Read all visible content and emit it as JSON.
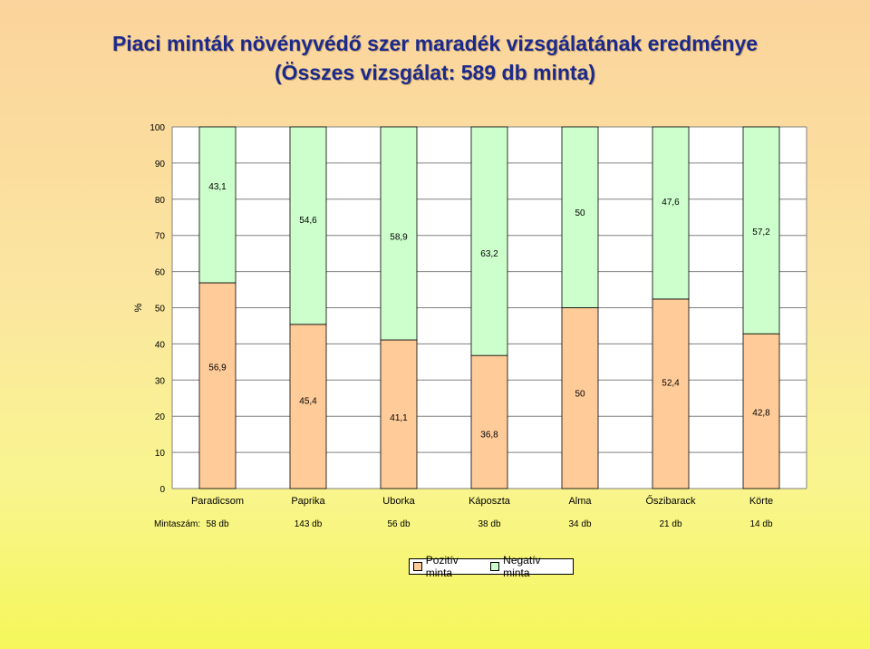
{
  "title": {
    "line1": "Piaci minták növényvédő szer maradék vizsgálatának eredménye",
    "line2": "(Összes vizsgálat: 589 db minta)"
  },
  "colors": {
    "positive": "#ffcc99",
    "negative": "#ccffcc",
    "plot_bg": "#ffffff",
    "grid": "#808080"
  },
  "chart_data": {
    "type": "bar",
    "stacked": true,
    "categories": [
      "Paradicsom",
      "Paprika",
      "Uborka",
      "Káposzta",
      "Alma",
      "Őszibarack",
      "Körte"
    ],
    "series": [
      {
        "name": "Pozitív minta",
        "values": [
          56.9,
          45.4,
          41.1,
          36.8,
          50,
          52.4,
          42.8
        ],
        "labels": [
          "56,9",
          "45,4",
          "41,1",
          "36,8",
          "50",
          "52,4",
          "42,8"
        ]
      },
      {
        "name": "Negatív minta",
        "values": [
          43.1,
          54.6,
          58.9,
          63.2,
          50,
          47.6,
          57.2
        ],
        "labels": [
          "43,1",
          "54,6",
          "58,9",
          "63,2",
          "50",
          "47,6",
          "57,2"
        ]
      }
    ],
    "ylabel": "%",
    "ylim": [
      0,
      100
    ],
    "yticks": [
      0,
      10,
      20,
      30,
      40,
      50,
      60,
      70,
      80,
      90,
      100
    ],
    "grid": true,
    "sample_label": "Mintaszám:",
    "sample_counts": [
      "58 db",
      "143 db",
      "56 db",
      "38 db",
      "34 db",
      "21 db",
      "14 db"
    ],
    "legend_position": "bottom"
  }
}
